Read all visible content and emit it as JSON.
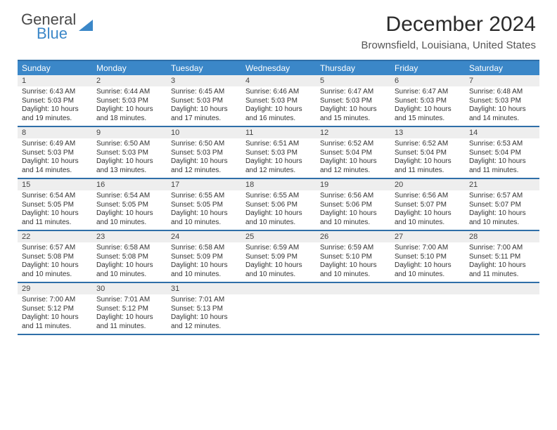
{
  "brand": {
    "line1": "General",
    "line2": "Blue",
    "gray_color": "#4a4a4a",
    "blue_color": "#3b87c8"
  },
  "title": "December 2024",
  "location": "Brownsfield, Louisiana, United States",
  "accent_color": "#3b87c8",
  "rule_color": "#2f6fa8",
  "daynum_bg": "#eeeeee",
  "days_of_week": [
    "Sunday",
    "Monday",
    "Tuesday",
    "Wednesday",
    "Thursday",
    "Friday",
    "Saturday"
  ],
  "weeks": [
    [
      {
        "n": "1",
        "sr": "Sunrise: 6:43 AM",
        "ss": "Sunset: 5:03 PM",
        "d1": "Daylight: 10 hours",
        "d2": "and 19 minutes."
      },
      {
        "n": "2",
        "sr": "Sunrise: 6:44 AM",
        "ss": "Sunset: 5:03 PM",
        "d1": "Daylight: 10 hours",
        "d2": "and 18 minutes."
      },
      {
        "n": "3",
        "sr": "Sunrise: 6:45 AM",
        "ss": "Sunset: 5:03 PM",
        "d1": "Daylight: 10 hours",
        "d2": "and 17 minutes."
      },
      {
        "n": "4",
        "sr": "Sunrise: 6:46 AM",
        "ss": "Sunset: 5:03 PM",
        "d1": "Daylight: 10 hours",
        "d2": "and 16 minutes."
      },
      {
        "n": "5",
        "sr": "Sunrise: 6:47 AM",
        "ss": "Sunset: 5:03 PM",
        "d1": "Daylight: 10 hours",
        "d2": "and 15 minutes."
      },
      {
        "n": "6",
        "sr": "Sunrise: 6:47 AM",
        "ss": "Sunset: 5:03 PM",
        "d1": "Daylight: 10 hours",
        "d2": "and 15 minutes."
      },
      {
        "n": "7",
        "sr": "Sunrise: 6:48 AM",
        "ss": "Sunset: 5:03 PM",
        "d1": "Daylight: 10 hours",
        "d2": "and 14 minutes."
      }
    ],
    [
      {
        "n": "8",
        "sr": "Sunrise: 6:49 AM",
        "ss": "Sunset: 5:03 PM",
        "d1": "Daylight: 10 hours",
        "d2": "and 14 minutes."
      },
      {
        "n": "9",
        "sr": "Sunrise: 6:50 AM",
        "ss": "Sunset: 5:03 PM",
        "d1": "Daylight: 10 hours",
        "d2": "and 13 minutes."
      },
      {
        "n": "10",
        "sr": "Sunrise: 6:50 AM",
        "ss": "Sunset: 5:03 PM",
        "d1": "Daylight: 10 hours",
        "d2": "and 12 minutes."
      },
      {
        "n": "11",
        "sr": "Sunrise: 6:51 AM",
        "ss": "Sunset: 5:03 PM",
        "d1": "Daylight: 10 hours",
        "d2": "and 12 minutes."
      },
      {
        "n": "12",
        "sr": "Sunrise: 6:52 AM",
        "ss": "Sunset: 5:04 PM",
        "d1": "Daylight: 10 hours",
        "d2": "and 12 minutes."
      },
      {
        "n": "13",
        "sr": "Sunrise: 6:52 AM",
        "ss": "Sunset: 5:04 PM",
        "d1": "Daylight: 10 hours",
        "d2": "and 11 minutes."
      },
      {
        "n": "14",
        "sr": "Sunrise: 6:53 AM",
        "ss": "Sunset: 5:04 PM",
        "d1": "Daylight: 10 hours",
        "d2": "and 11 minutes."
      }
    ],
    [
      {
        "n": "15",
        "sr": "Sunrise: 6:54 AM",
        "ss": "Sunset: 5:05 PM",
        "d1": "Daylight: 10 hours",
        "d2": "and 11 minutes."
      },
      {
        "n": "16",
        "sr": "Sunrise: 6:54 AM",
        "ss": "Sunset: 5:05 PM",
        "d1": "Daylight: 10 hours",
        "d2": "and 10 minutes."
      },
      {
        "n": "17",
        "sr": "Sunrise: 6:55 AM",
        "ss": "Sunset: 5:05 PM",
        "d1": "Daylight: 10 hours",
        "d2": "and 10 minutes."
      },
      {
        "n": "18",
        "sr": "Sunrise: 6:55 AM",
        "ss": "Sunset: 5:06 PM",
        "d1": "Daylight: 10 hours",
        "d2": "and 10 minutes."
      },
      {
        "n": "19",
        "sr": "Sunrise: 6:56 AM",
        "ss": "Sunset: 5:06 PM",
        "d1": "Daylight: 10 hours",
        "d2": "and 10 minutes."
      },
      {
        "n": "20",
        "sr": "Sunrise: 6:56 AM",
        "ss": "Sunset: 5:07 PM",
        "d1": "Daylight: 10 hours",
        "d2": "and 10 minutes."
      },
      {
        "n": "21",
        "sr": "Sunrise: 6:57 AM",
        "ss": "Sunset: 5:07 PM",
        "d1": "Daylight: 10 hours",
        "d2": "and 10 minutes."
      }
    ],
    [
      {
        "n": "22",
        "sr": "Sunrise: 6:57 AM",
        "ss": "Sunset: 5:08 PM",
        "d1": "Daylight: 10 hours",
        "d2": "and 10 minutes."
      },
      {
        "n": "23",
        "sr": "Sunrise: 6:58 AM",
        "ss": "Sunset: 5:08 PM",
        "d1": "Daylight: 10 hours",
        "d2": "and 10 minutes."
      },
      {
        "n": "24",
        "sr": "Sunrise: 6:58 AM",
        "ss": "Sunset: 5:09 PM",
        "d1": "Daylight: 10 hours",
        "d2": "and 10 minutes."
      },
      {
        "n": "25",
        "sr": "Sunrise: 6:59 AM",
        "ss": "Sunset: 5:09 PM",
        "d1": "Daylight: 10 hours",
        "d2": "and 10 minutes."
      },
      {
        "n": "26",
        "sr": "Sunrise: 6:59 AM",
        "ss": "Sunset: 5:10 PM",
        "d1": "Daylight: 10 hours",
        "d2": "and 10 minutes."
      },
      {
        "n": "27",
        "sr": "Sunrise: 7:00 AM",
        "ss": "Sunset: 5:10 PM",
        "d1": "Daylight: 10 hours",
        "d2": "and 10 minutes."
      },
      {
        "n": "28",
        "sr": "Sunrise: 7:00 AM",
        "ss": "Sunset: 5:11 PM",
        "d1": "Daylight: 10 hours",
        "d2": "and 11 minutes."
      }
    ],
    [
      {
        "n": "29",
        "sr": "Sunrise: 7:00 AM",
        "ss": "Sunset: 5:12 PM",
        "d1": "Daylight: 10 hours",
        "d2": "and 11 minutes."
      },
      {
        "n": "30",
        "sr": "Sunrise: 7:01 AM",
        "ss": "Sunset: 5:12 PM",
        "d1": "Daylight: 10 hours",
        "d2": "and 11 minutes."
      },
      {
        "n": "31",
        "sr": "Sunrise: 7:01 AM",
        "ss": "Sunset: 5:13 PM",
        "d1": "Daylight: 10 hours",
        "d2": "and 12 minutes."
      },
      {
        "n": "",
        "sr": "",
        "ss": "",
        "d1": "",
        "d2": ""
      },
      {
        "n": "",
        "sr": "",
        "ss": "",
        "d1": "",
        "d2": ""
      },
      {
        "n": "",
        "sr": "",
        "ss": "",
        "d1": "",
        "d2": ""
      },
      {
        "n": "",
        "sr": "",
        "ss": "",
        "d1": "",
        "d2": ""
      }
    ]
  ]
}
